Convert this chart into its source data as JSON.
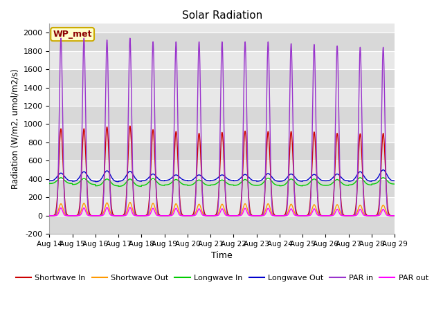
{
  "title": "Solar Radiation",
  "xlabel": "Time",
  "ylabel": "Radiation (W/m2, umol/m2/s)",
  "ylim": [
    -200,
    2100
  ],
  "yticks": [
    -200,
    0,
    200,
    400,
    600,
    800,
    1000,
    1200,
    1400,
    1600,
    1800,
    2000
  ],
  "station_label": "WP_met",
  "background_color": "#ffffff",
  "plot_bg_color": "#e8e8e8",
  "grid_color": "#ffffff",
  "series": [
    {
      "name": "Shortwave In",
      "color": "#cc0000"
    },
    {
      "name": "Shortwave Out",
      "color": "#ff9900"
    },
    {
      "name": "Longwave In",
      "color": "#00cc00"
    },
    {
      "name": "Longwave Out",
      "color": "#0000cc"
    },
    {
      "name": "PAR in",
      "color": "#9933cc"
    },
    {
      "name": "PAR out",
      "color": "#ff00ff"
    }
  ],
  "n_days": 15,
  "start_day": 14,
  "shortwave_in_peaks": [
    950,
    950,
    970,
    980,
    940,
    920,
    900,
    910,
    925,
    920,
    920,
    915,
    900,
    895,
    900
  ],
  "shortwave_out_peaks": [
    130,
    135,
    140,
    145,
    135,
    130,
    125,
    125,
    130,
    130,
    125,
    120,
    120,
    115,
    115
  ],
  "par_in_peaks": [
    1940,
    1940,
    1920,
    1940,
    1900,
    1900,
    1900,
    1900,
    1900,
    1900,
    1880,
    1870,
    1855,
    1840,
    1840
  ],
  "par_out_peaks": [
    85,
    85,
    90,
    90,
    80,
    80,
    75,
    75,
    80,
    80,
    75,
    75,
    70,
    70,
    70
  ],
  "longwave_in_base": [
    350,
    340,
    325,
    320,
    330,
    335,
    330,
    335,
    330,
    330,
    325,
    330,
    330,
    335,
    345
  ],
  "longwave_in_peak": [
    415,
    405,
    400,
    400,
    405,
    395,
    390,
    390,
    395,
    410,
    400,
    400,
    395,
    415,
    415
  ],
  "longwave_out_base": [
    380,
    375,
    370,
    375,
    380,
    385,
    380,
    385,
    380,
    375,
    375,
    380,
    380,
    375,
    380
  ],
  "longwave_out_peak": [
    465,
    480,
    490,
    485,
    455,
    445,
    445,
    445,
    450,
    460,
    455,
    450,
    455,
    480,
    500
  ]
}
